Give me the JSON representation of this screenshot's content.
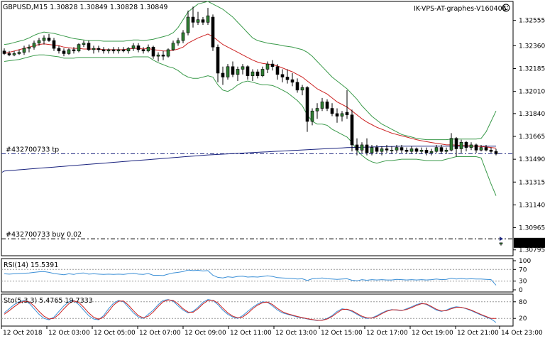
{
  "header": {
    "symbol_info": "GBPUSD,M15  1.30828 1.30849 1.30828 1.30849",
    "expert_label": "IK-VPS-AT-graphes-V160406",
    "expert_icon": "smiley-icon"
  },
  "order_lines": {
    "tp_label": "#432700733 tp",
    "buy_label": "#432700733 buy 0.02",
    "tp_price": 1.31532,
    "buy_price": 1.3088
  },
  "current_price": "1.30849",
  "rsi_panel": {
    "label": "RSI(14) 15.5391",
    "levels": [
      "100",
      "70",
      "30",
      "0"
    ]
  },
  "stoch_panel": {
    "label": "Sto(5,3,3) 5.4765 19.7333",
    "levels": [
      "80",
      "20"
    ]
  },
  "price_ticks": [
    "1.32555",
    "1.32360",
    "1.32185",
    "1.32010",
    "1.31840",
    "1.31665",
    "1.31490",
    "1.31315",
    "1.31140",
    "1.30965",
    "1.30795"
  ],
  "time_ticks": [
    "12 Oct 2018",
    "12 Oct 03:00",
    "12 Oct 05:00",
    "12 Oct 07:00",
    "12 Oct 09:00",
    "12 Oct 11:00",
    "12 Oct 13:00",
    "12 Oct 15:00",
    "12 Oct 17:00",
    "12 Oct 19:00",
    "12 Oct 21:00",
    "14 Oct 23:00"
  ],
  "colors": {
    "bull": "#2e7d32",
    "bear": "#000000",
    "ma_fast": "#cc2222",
    "ma_slow": "#1a237e",
    "bands": "#3a9a4a",
    "rsi": "#3b8fd6",
    "stoch_main": "#3b8fd6",
    "stoch_signal": "#cc2222",
    "level_line": "#000000",
    "price_box": "#000000"
  },
  "chart_data": {
    "type": "candlestick",
    "symbol": "GBPUSD",
    "timeframe": "M15",
    "ylim": [
      1.3075,
      1.327
    ],
    "candles": [
      [
        1.3232,
        1.3234,
        1.3229,
        1.323
      ],
      [
        1.323,
        1.3232,
        1.3228,
        1.3229
      ],
      [
        1.3229,
        1.3232,
        1.3228,
        1.323
      ],
      [
        1.323,
        1.3233,
        1.3229,
        1.3231
      ],
      [
        1.3231,
        1.3236,
        1.3229,
        1.3234
      ],
      [
        1.3234,
        1.3237,
        1.3231,
        1.3235
      ],
      [
        1.3235,
        1.324,
        1.3233,
        1.3238
      ],
      [
        1.3238,
        1.3242,
        1.3236,
        1.324
      ],
      [
        1.324,
        1.3244,
        1.3237,
        1.3242
      ],
      [
        1.3242,
        1.3245,
        1.3239,
        1.324
      ],
      [
        1.324,
        1.3242,
        1.3232,
        1.3234
      ],
      [
        1.3234,
        1.3236,
        1.323,
        1.3232
      ],
      [
        1.3232,
        1.3234,
        1.3228,
        1.323
      ],
      [
        1.323,
        1.3234,
        1.3229,
        1.3233
      ],
      [
        1.3233,
        1.3235,
        1.323,
        1.3232
      ],
      [
        1.3232,
        1.3238,
        1.3231,
        1.3237
      ],
      [
        1.3237,
        1.324,
        1.3235,
        1.3238
      ],
      [
        1.3238,
        1.324,
        1.3232,
        1.3233
      ],
      [
        1.3233,
        1.3236,
        1.323,
        1.3234
      ],
      [
        1.3234,
        1.3236,
        1.3231,
        1.3233
      ],
      [
        1.3233,
        1.3235,
        1.323,
        1.3232
      ],
      [
        1.3232,
        1.3234,
        1.323,
        1.3233
      ],
      [
        1.3233,
        1.3235,
        1.323,
        1.3232
      ],
      [
        1.3232,
        1.3235,
        1.323,
        1.3233
      ],
      [
        1.3233,
        1.3235,
        1.3231,
        1.3232
      ],
      [
        1.3232,
        1.3235,
        1.323,
        1.3234
      ],
      [
        1.3234,
        1.3238,
        1.3232,
        1.3236
      ],
      [
        1.3236,
        1.3238,
        1.3231,
        1.3233
      ],
      [
        1.3233,
        1.3235,
        1.323,
        1.3232
      ],
      [
        1.3232,
        1.3237,
        1.3231,
        1.3235
      ],
      [
        1.3235,
        1.3236,
        1.3226,
        1.3228
      ],
      [
        1.3228,
        1.3231,
        1.3224,
        1.3229
      ],
      [
        1.3229,
        1.3232,
        1.3225,
        1.3228
      ],
      [
        1.3228,
        1.3234,
        1.3227,
        1.3233
      ],
      [
        1.3233,
        1.324,
        1.3232,
        1.3238
      ],
      [
        1.3238,
        1.3242,
        1.3236,
        1.324
      ],
      [
        1.324,
        1.3248,
        1.3238,
        1.3246
      ],
      [
        1.3246,
        1.3263,
        1.3244,
        1.3258
      ],
      [
        1.3258,
        1.3266,
        1.325,
        1.3254
      ],
      [
        1.3254,
        1.3262,
        1.3252,
        1.3256
      ],
      [
        1.3256,
        1.3258,
        1.3252,
        1.3254
      ],
      [
        1.3254,
        1.3265,
        1.3252,
        1.3259
      ],
      [
        1.3258,
        1.326,
        1.3232,
        1.3235
      ],
      [
        1.3235,
        1.3237,
        1.3208,
        1.3215
      ],
      [
        1.3215,
        1.322,
        1.3206,
        1.3212
      ],
      [
        1.3212,
        1.3222,
        1.321,
        1.322
      ],
      [
        1.322,
        1.3224,
        1.3212,
        1.3214
      ],
      [
        1.3214,
        1.322,
        1.3209,
        1.3218
      ],
      [
        1.3218,
        1.3222,
        1.3214,
        1.322
      ],
      [
        1.322,
        1.3221,
        1.321,
        1.3213
      ],
      [
        1.3213,
        1.3218,
        1.3209,
        1.3216
      ],
      [
        1.3216,
        1.3218,
        1.3211,
        1.3213
      ],
      [
        1.3213,
        1.322,
        1.3212,
        1.3218
      ],
      [
        1.3218,
        1.3224,
        1.3215,
        1.3222
      ],
      [
        1.3222,
        1.3225,
        1.3217,
        1.322
      ],
      [
        1.322,
        1.3222,
        1.321,
        1.3214
      ],
      [
        1.3214,
        1.3218,
        1.3208,
        1.3212
      ],
      [
        1.3212,
        1.3218,
        1.3207,
        1.321
      ],
      [
        1.321,
        1.3215,
        1.3205,
        1.3208
      ],
      [
        1.3208,
        1.3211,
        1.32,
        1.3202
      ],
      [
        1.3202,
        1.3206,
        1.3198,
        1.3204
      ],
      [
        1.3204,
        1.3205,
        1.317,
        1.3178
      ],
      [
        1.3178,
        1.3188,
        1.3175,
        1.3186
      ],
      [
        1.3186,
        1.3192,
        1.318,
        1.3188
      ],
      [
        1.3188,
        1.3196,
        1.3186,
        1.3193
      ],
      [
        1.3193,
        1.3195,
        1.3186,
        1.3188
      ],
      [
        1.3188,
        1.3192,
        1.3182,
        1.3184
      ],
      [
        1.3184,
        1.3188,
        1.3177,
        1.3182
      ],
      [
        1.3182,
        1.3186,
        1.3178,
        1.3184
      ],
      [
        1.3185,
        1.3202,
        1.318,
        1.3183
      ],
      [
        1.3183,
        1.3187,
        1.3155,
        1.316
      ],
      [
        1.316,
        1.3165,
        1.3152,
        1.3156
      ],
      [
        1.3156,
        1.3162,
        1.3154,
        1.316
      ],
      [
        1.316,
        1.3165,
        1.3152,
        1.3154
      ],
      [
        1.3154,
        1.316,
        1.3152,
        1.3158
      ],
      [
        1.3158,
        1.316,
        1.3153,
        1.3155
      ],
      [
        1.3155,
        1.3159,
        1.3152,
        1.3157
      ],
      [
        1.3157,
        1.316,
        1.3154,
        1.3156
      ],
      [
        1.3156,
        1.3159,
        1.3153,
        1.3156
      ],
      [
        1.3156,
        1.316,
        1.3154,
        1.3158
      ],
      [
        1.3158,
        1.316,
        1.3154,
        1.3156
      ],
      [
        1.3156,
        1.3158,
        1.3153,
        1.3155
      ],
      [
        1.3155,
        1.3159,
        1.3153,
        1.3157
      ],
      [
        1.3157,
        1.3158,
        1.3153,
        1.3155
      ],
      [
        1.3155,
        1.3158,
        1.3153,
        1.3156
      ],
      [
        1.3156,
        1.3158,
        1.3152,
        1.3154
      ],
      [
        1.3154,
        1.3157,
        1.3152,
        1.3155
      ],
      [
        1.3155,
        1.316,
        1.3154,
        1.3158
      ],
      [
        1.3158,
        1.316,
        1.3153,
        1.3155
      ],
      [
        1.3155,
        1.3158,
        1.3153,
        1.3156
      ],
      [
        1.3156,
        1.3169,
        1.3155,
        1.3165
      ],
      [
        1.3165,
        1.3166,
        1.3151,
        1.3157
      ],
      [
        1.3157,
        1.3164,
        1.3154,
        1.3162
      ],
      [
        1.3162,
        1.3163,
        1.3155,
        1.3158
      ],
      [
        1.3158,
        1.3162,
        1.3156,
        1.316
      ],
      [
        1.316,
        1.3161,
        1.3154,
        1.3156
      ],
      [
        1.3156,
        1.316,
        1.3155,
        1.3158
      ],
      [
        1.3158,
        1.316,
        1.3155,
        1.3156
      ],
      [
        1.3156,
        1.3158,
        1.3154,
        1.3155
      ],
      [
        1.3155,
        1.3157,
        1.3152,
        1.3153
      ],
      [
        1.3084,
        1.30849,
        1.30828,
        1.30849
      ]
    ],
    "ma_fast": [
      1.323,
      1.3231,
      1.3232,
      1.3233,
      1.3234,
      1.3235,
      1.3236,
      1.3237,
      1.32375,
      1.3237,
      1.32365,
      1.3236,
      1.3235,
      1.32345,
      1.3234,
      1.3234,
      1.32335,
      1.32335,
      1.32335,
      1.32335,
      1.3233,
      1.3233,
      1.3233,
      1.3233,
      1.3233,
      1.32335,
      1.3234,
      1.3234,
      1.32335,
      1.3234,
      1.3233,
      1.32325,
      1.3232,
      1.3232,
      1.32325,
      1.32335,
      1.3235,
      1.3238,
      1.324,
      1.3242,
      1.32435,
      1.3245,
      1.3243,
      1.324,
      1.3237,
      1.3235,
      1.3233,
      1.3231,
      1.3229,
      1.3227,
      1.3225,
      1.32235,
      1.32225,
      1.3222,
      1.32215,
      1.32205,
      1.3219,
      1.32175,
      1.3216,
      1.3214,
      1.3212,
      1.3209,
      1.3206,
      1.3203,
      1.3201,
      1.3199,
      1.3196,
      1.3193,
      1.3191,
      1.3189,
      1.3186,
      1.3183,
      1.318,
      1.31775,
      1.31755,
      1.31735,
      1.3172,
      1.31705,
      1.3169,
      1.3168,
      1.3167,
      1.3166,
      1.3165,
      1.3164,
      1.31632,
      1.31625,
      1.31618,
      1.31612,
      1.31606,
      1.316,
      1.316,
      1.31598,
      1.31596,
      1.31594,
      1.31592,
      1.3159,
      1.31587,
      1.31584,
      1.3158,
      1.31575
    ],
    "ma_slow": [
      1.314,
      1.31403,
      1.31406,
      1.31409,
      1.31412,
      1.31415,
      1.31418,
      1.31421,
      1.31424,
      1.31427,
      1.3143,
      1.31433,
      1.31436,
      1.31439,
      1.31442,
      1.31445,
      1.31448,
      1.31451,
      1.31454,
      1.31457,
      1.3146,
      1.31463,
      1.31466,
      1.31469,
      1.31472,
      1.31475,
      1.31478,
      1.31481,
      1.31484,
      1.31487,
      1.3149,
      1.31493,
      1.31496,
      1.31499,
      1.31502,
      1.31505,
      1.31508,
      1.31511,
      1.31514,
      1.31517,
      1.3152,
      1.31523,
      1.31525,
      1.31527,
      1.31529,
      1.31531,
      1.31533,
      1.31535,
      1.31537,
      1.31539,
      1.31541,
      1.31543,
      1.31545,
      1.31547,
      1.31549,
      1.31551,
      1.31553,
      1.31555,
      1.31557,
      1.31559,
      1.31561,
      1.31563,
      1.31565,
      1.31567,
      1.31569,
      1.31571,
      1.31573,
      1.31575,
      1.31577,
      1.31579,
      1.3158,
      1.31581,
      1.31582,
      1.31583,
      1.31584,
      1.31585,
      1.31586,
      1.31587,
      1.31588,
      1.31589,
      1.3159,
      1.3159,
      1.3159,
      1.3159,
      1.3159,
      1.3159,
      1.3159,
      1.3159,
      1.3159,
      1.3159,
      1.3159,
      1.3159,
      1.3159,
      1.3159,
      1.3159,
      1.3159,
      1.3159,
      1.3159,
      1.3159,
      1.3159
    ],
    "bb_upper": [
      1.3237,
      1.32375,
      1.32385,
      1.32395,
      1.32405,
      1.3242,
      1.3244,
      1.32455,
      1.32465,
      1.3246,
      1.32455,
      1.32445,
      1.32435,
      1.32425,
      1.32415,
      1.3241,
      1.32405,
      1.324,
      1.324,
      1.324,
      1.32395,
      1.32395,
      1.32395,
      1.32395,
      1.32395,
      1.324,
      1.32405,
      1.32405,
      1.324,
      1.32405,
      1.3241,
      1.3242,
      1.3243,
      1.3244,
      1.3246,
      1.325,
      1.3256,
      1.3262,
      1.3265,
      1.3268,
      1.3269,
      1.327,
      1.3268,
      1.3266,
      1.3264,
      1.3261,
      1.3258,
      1.3254,
      1.325,
      1.3246,
      1.3242,
      1.324,
      1.3239,
      1.3238,
      1.32375,
      1.3237,
      1.3236,
      1.32355,
      1.3235,
      1.3234,
      1.3233,
      1.3231,
      1.3228,
      1.3224,
      1.322,
      1.3216,
      1.3212,
      1.3209,
      1.3206,
      1.3203,
      1.3199,
      1.3195,
      1.319,
      1.3186,
      1.3182,
      1.3179,
      1.3176,
      1.3174,
      1.3172,
      1.317,
      1.3168,
      1.3167,
      1.3166,
      1.3165,
      1.31645,
      1.3164,
      1.3164,
      1.3164,
      1.3164,
      1.3164,
      1.31645,
      1.31645,
      1.31645,
      1.31645,
      1.31645,
      1.31645,
      1.3165,
      1.317,
      1.3178,
      1.3186
    ],
    "bb_lower": [
      1.3224,
      1.32245,
      1.3225,
      1.32255,
      1.32265,
      1.32275,
      1.32285,
      1.3229,
      1.3229,
      1.32285,
      1.3228,
      1.32275,
      1.32265,
      1.32265,
      1.32265,
      1.3227,
      1.3227,
      1.3227,
      1.3227,
      1.3227,
      1.3227,
      1.3227,
      1.3227,
      1.3227,
      1.3227,
      1.3227,
      1.32275,
      1.32275,
      1.32275,
      1.32275,
      1.3225,
      1.3223,
      1.32215,
      1.322,
      1.3219,
      1.3217,
      1.3214,
      1.3212,
      1.3211,
      1.3211,
      1.3212,
      1.3213,
      1.3212,
      1.3206,
      1.3202,
      1.3201,
      1.3203,
      1.3206,
      1.3208,
      1.3209,
      1.3208,
      1.3207,
      1.3206,
      1.3206,
      1.32055,
      1.3204,
      1.3202,
      1.32,
      1.3197,
      1.3194,
      1.319,
      1.3183,
      1.3178,
      1.3176,
      1.3176,
      1.3175,
      1.3172,
      1.317,
      1.3168,
      1.3166,
      1.3162,
      1.3156,
      1.3152,
      1.3149,
      1.3147,
      1.3146,
      1.3147,
      1.3148,
      1.3148,
      1.31485,
      1.3149,
      1.3149,
      1.3149,
      1.3149,
      1.31485,
      1.3148,
      1.3148,
      1.3148,
      1.3148,
      1.3149,
      1.315,
      1.3151,
      1.3151,
      1.3151,
      1.3151,
      1.3151,
      1.315,
      1.314,
      1.313,
      1.3121
    ],
    "rsi": [
      55,
      54,
      55,
      56,
      57,
      58,
      60,
      62,
      63,
      60,
      56,
      54,
      52,
      55,
      53,
      57,
      58,
      54,
      55,
      54,
      53,
      54,
      53,
      54,
      53,
      55,
      57,
      54,
      53,
      56,
      50,
      50,
      49,
      54,
      58,
      60,
      63,
      68,
      66,
      67,
      65,
      66,
      50,
      43,
      41,
      45,
      43,
      46,
      47,
      44,
      45,
      44,
      46,
      48,
      46,
      42,
      41,
      40,
      39,
      37,
      38,
      32,
      38,
      39,
      41,
      38,
      37,
      36,
      37,
      38,
      33,
      31,
      35,
      33,
      35,
      34,
      35,
      34,
      34,
      36,
      35,
      34,
      35,
      34,
      35,
      34,
      35,
      37,
      35,
      36,
      40,
      37,
      39,
      37,
      38,
      37,
      37,
      36,
      35,
      16
    ],
    "stoch_k": [
      40,
      55,
      70,
      80,
      85,
      75,
      55,
      35,
      20,
      15,
      25,
      45,
      65,
      80,
      85,
      70,
      50,
      30,
      18,
      15,
      30,
      55,
      75,
      85,
      80,
      60,
      40,
      25,
      20,
      35,
      50,
      70,
      85,
      88,
      82,
      65,
      50,
      40,
      45,
      60,
      78,
      88,
      85,
      70,
      50,
      35,
      25,
      20,
      30,
      45,
      60,
      72,
      80,
      78,
      65,
      50,
      40,
      35,
      30,
      25,
      22,
      18,
      15,
      12,
      14,
      20,
      30,
      45,
      55,
      52,
      45,
      35,
      25,
      20,
      22,
      30,
      40,
      48,
      52,
      50,
      48,
      55,
      62,
      70,
      75,
      70,
      60,
      50,
      45,
      50,
      58,
      62,
      60,
      55,
      48,
      40,
      32,
      25,
      18,
      5.4765
    ],
    "stoch_d": [
      35,
      48,
      62,
      75,
      82,
      80,
      65,
      45,
      28,
      18,
      20,
      35,
      55,
      73,
      83,
      78,
      60,
      40,
      24,
      17,
      24,
      45,
      68,
      82,
      83,
      68,
      48,
      30,
      22,
      28,
      43,
      63,
      80,
      87,
      85,
      72,
      55,
      43,
      42,
      55,
      72,
      85,
      86,
      76,
      57,
      40,
      28,
      22,
      25,
      38,
      55,
      68,
      77,
      79,
      70,
      56,
      44,
      37,
      32,
      27,
      23,
      19,
      16,
      13,
      13,
      18,
      27,
      40,
      52,
      53,
      48,
      38,
      28,
      22,
      21,
      27,
      37,
      46,
      51,
      51,
      49,
      52,
      59,
      67,
      73,
      72,
      63,
      53,
      47,
      48,
      55,
      60,
      60,
      56,
      50,
      42,
      34,
      27,
      20,
      19.7333
    ]
  }
}
